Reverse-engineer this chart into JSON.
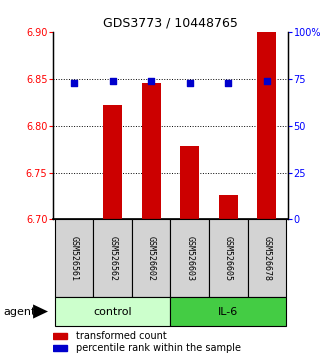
{
  "title": "GDS3773 / 10448765",
  "samples": [
    "GSM526561",
    "GSM526562",
    "GSM526602",
    "GSM526603",
    "GSM526605",
    "GSM526678"
  ],
  "red_values": [
    6.701,
    6.822,
    6.845,
    6.778,
    6.726,
    6.9
  ],
  "blue_values": [
    73,
    74,
    74,
    73,
    73,
    74
  ],
  "ylim_left": [
    6.7,
    6.9
  ],
  "ylim_right": [
    0,
    100
  ],
  "yticks_left": [
    6.7,
    6.75,
    6.8,
    6.85,
    6.9
  ],
  "yticks_right": [
    0,
    25,
    50,
    75,
    100
  ],
  "ytick_labels_right": [
    "0",
    "25",
    "50",
    "75",
    "100%"
  ],
  "grid_yticks": [
    6.75,
    6.8,
    6.85
  ],
  "bar_color": "#cc0000",
  "dot_color": "#0000cc",
  "bar_width": 0.5,
  "control_color": "#ccffcc",
  "il6_color": "#44cc44",
  "sample_box_color": "#d3d3d3",
  "group_labels": [
    "control",
    "IL-6"
  ],
  "agent_label": "agent",
  "legend_items": [
    {
      "color": "#cc0000",
      "label": "transformed count"
    },
    {
      "color": "#0000cc",
      "label": "percentile rank within the sample"
    }
  ]
}
